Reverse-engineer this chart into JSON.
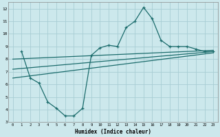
{
  "xlabel": "Humidex (Indice chaleur)",
  "bg_color": "#cce8ec",
  "grid_color": "#a8cdd4",
  "line_color": "#1a6b6b",
  "xlim": [
    -0.5,
    23.5
  ],
  "ylim": [
    3,
    12.5
  ],
  "xticks": [
    0,
    1,
    2,
    3,
    4,
    5,
    6,
    7,
    8,
    9,
    10,
    11,
    12,
    13,
    14,
    15,
    16,
    17,
    18,
    19,
    20,
    21,
    22,
    23
  ],
  "yticks": [
    3,
    4,
    5,
    6,
    7,
    8,
    9,
    10,
    11,
    12
  ],
  "line1_x": [
    1,
    2,
    3,
    4,
    5,
    6,
    7,
    8,
    9,
    10,
    11,
    12,
    13,
    14,
    15,
    16,
    17,
    18,
    19,
    20,
    21,
    22,
    23
  ],
  "line1_y": [
    8.6,
    6.5,
    6.1,
    4.6,
    4.1,
    3.5,
    3.5,
    4.1,
    8.3,
    8.9,
    9.1,
    9.0,
    10.5,
    11.0,
    12.1,
    11.2,
    9.5,
    9.0,
    9.0,
    9.0,
    8.8,
    8.6,
    8.6
  ],
  "line2_x": [
    0,
    23
  ],
  "line2_y": [
    8.0,
    8.7
  ],
  "line3_x": [
    0,
    23
  ],
  "line3_y": [
    7.2,
    8.6
  ],
  "line4_x": [
    0,
    23
  ],
  "line4_y": [
    6.5,
    8.5
  ]
}
